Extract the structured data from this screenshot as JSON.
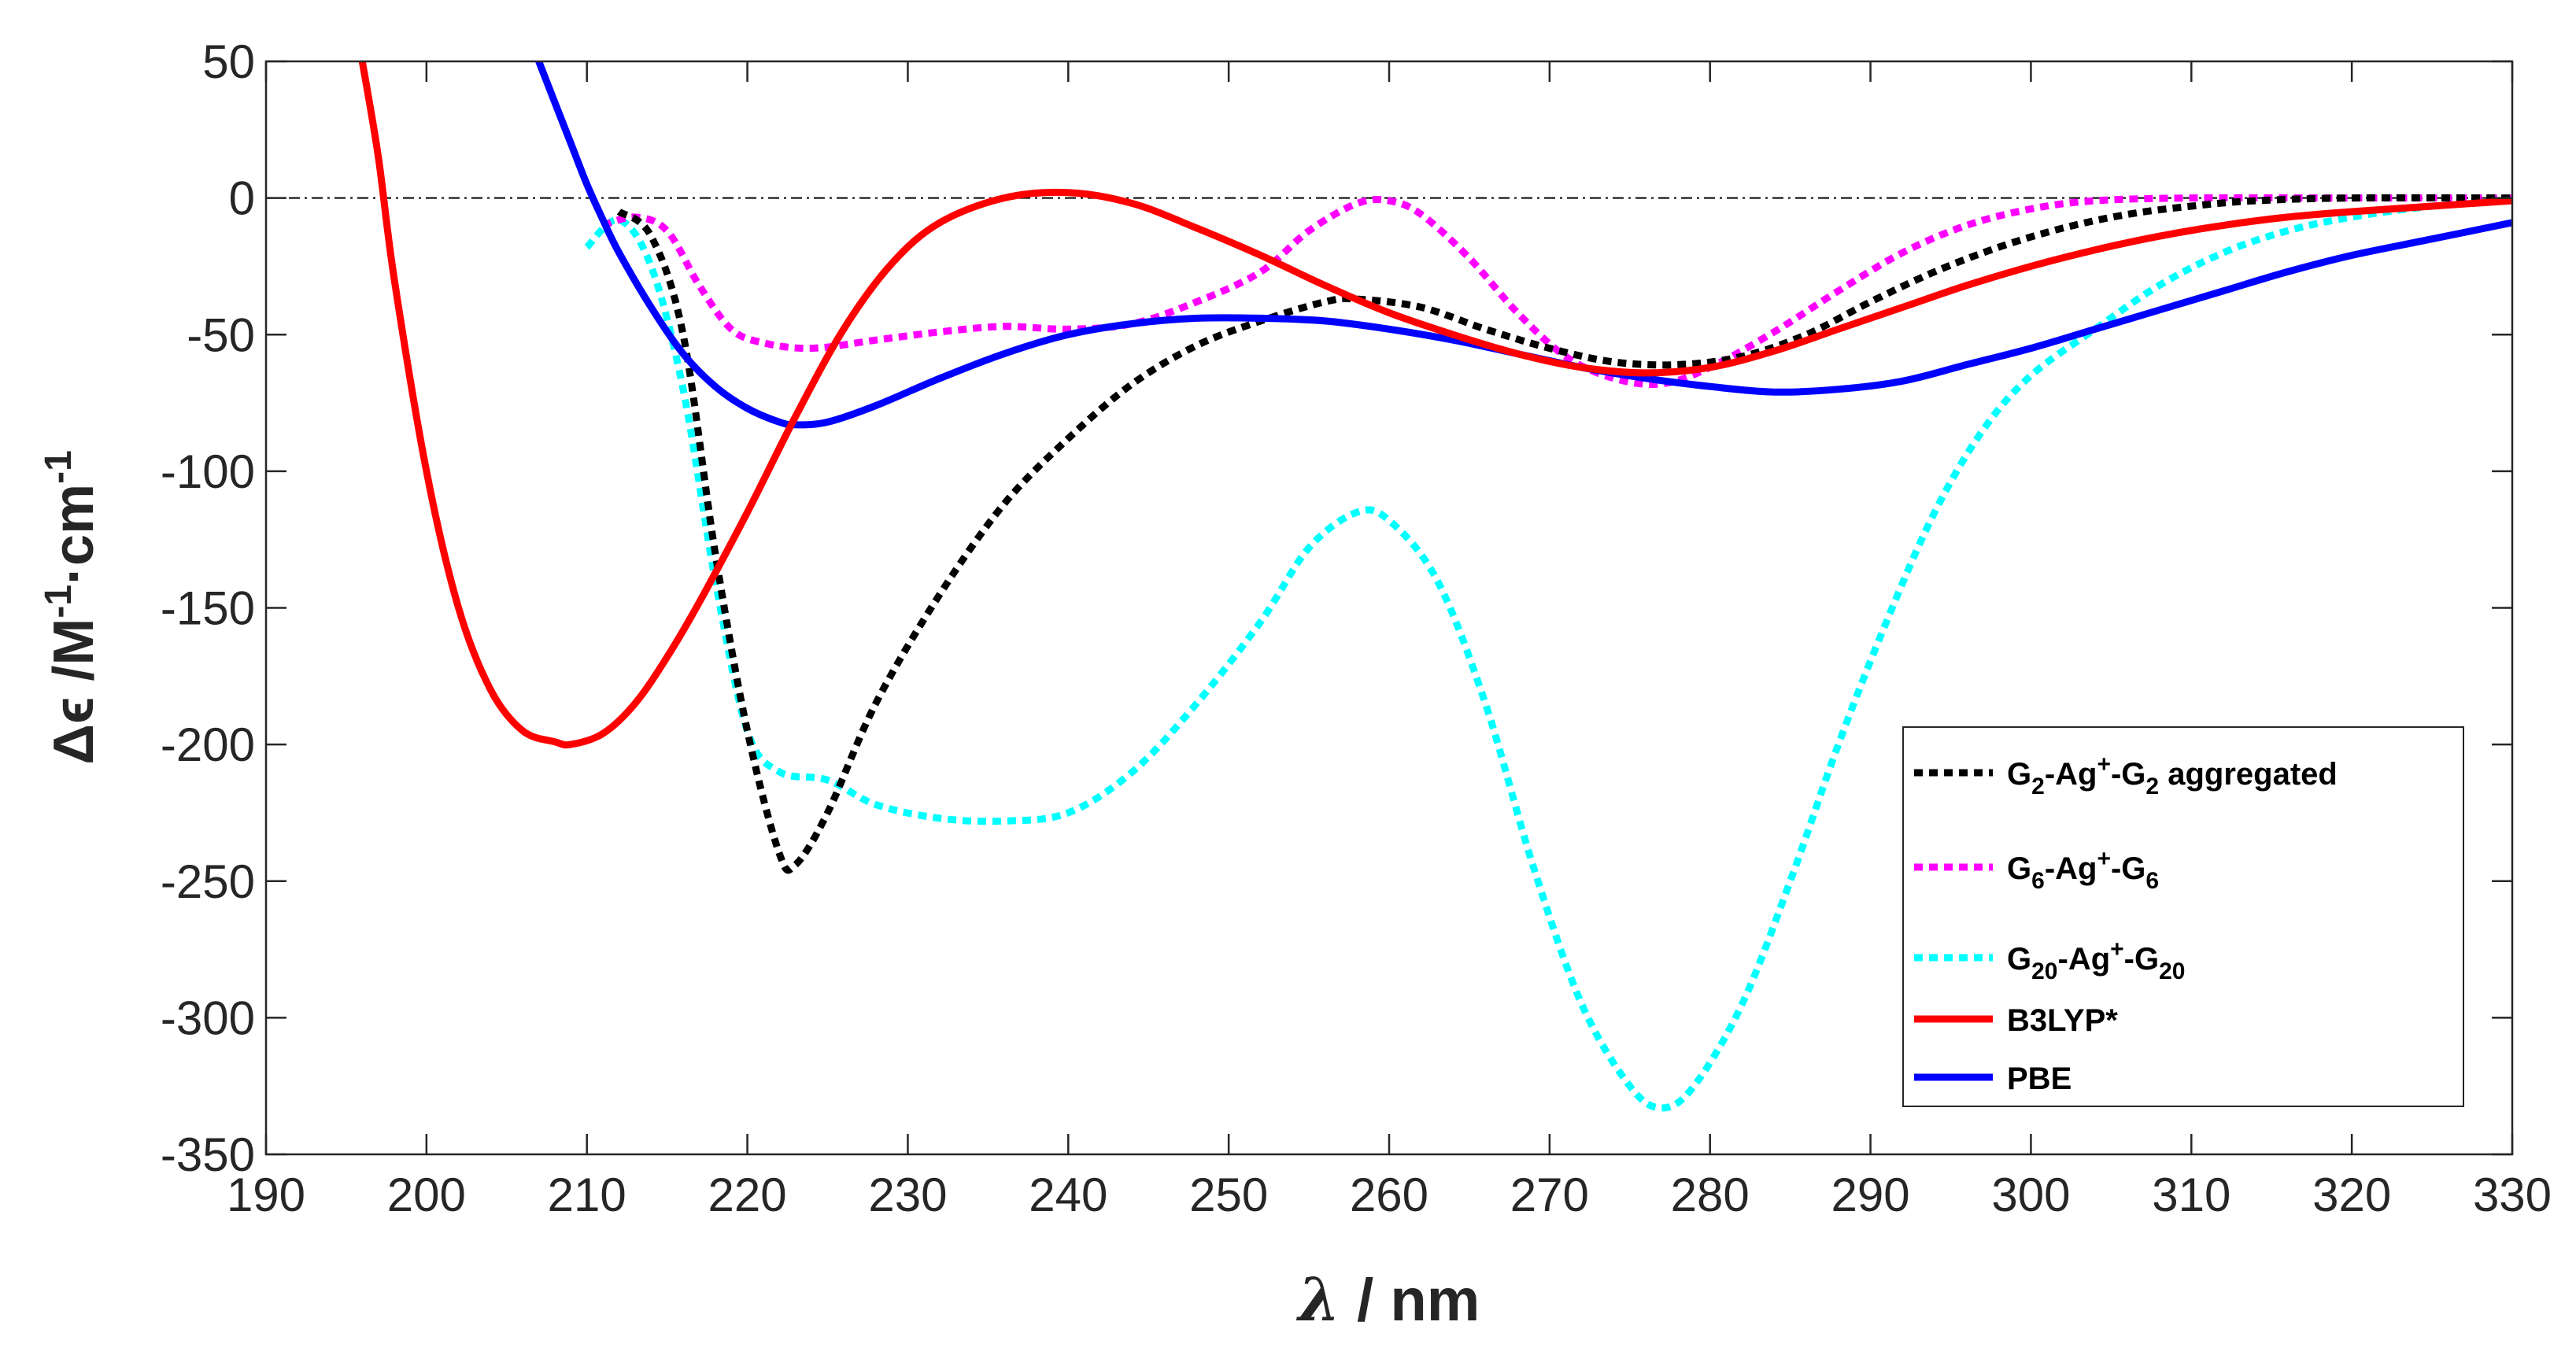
{
  "chart_data": {
    "type": "line",
    "title": "",
    "xlabel": {
      "symbol": "λ",
      "rest": " / nm"
    },
    "ylabel": {
      "a": "Δϵ /M",
      "b": "-1",
      "c": "·cm",
      "d": "-1"
    },
    "xlim": [
      190,
      330
    ],
    "ylim": [
      -350,
      50
    ],
    "xticks": [
      190,
      200,
      210,
      220,
      230,
      240,
      250,
      260,
      270,
      280,
      290,
      300,
      310,
      320,
      330
    ],
    "yticks": [
      50,
      0,
      -50,
      -100,
      -150,
      -200,
      -250,
      -300,
      -350
    ],
    "zero_line": true,
    "grid": false,
    "legend_position": "bottom-right",
    "series": [
      {
        "name": "G2-Ag+-G2 aggregated",
        "legend": [
          [
            "G",
            "n"
          ],
          [
            "2",
            "sub"
          ],
          [
            "-Ag",
            "n"
          ],
          [
            "+",
            "sup"
          ],
          [
            "-G",
            "n"
          ],
          [
            "2",
            "sub"
          ],
          [
            " aggregated",
            "n"
          ]
        ],
        "color": "#000000",
        "dashed": true,
        "points": [
          [
            212,
            -5
          ],
          [
            214,
            -14
          ],
          [
            216,
            -50
          ],
          [
            218,
            -130
          ],
          [
            220,
            -195
          ],
          [
            222,
            -240
          ],
          [
            223,
            -244
          ],
          [
            225,
            -225
          ],
          [
            228,
            -185
          ],
          [
            232,
            -145
          ],
          [
            236,
            -112
          ],
          [
            240,
            -88
          ],
          [
            244,
            -68
          ],
          [
            248,
            -54
          ],
          [
            252,
            -45
          ],
          [
            256,
            -38
          ],
          [
            258,
            -37
          ],
          [
            262,
            -40
          ],
          [
            266,
            -48
          ],
          [
            270,
            -55
          ],
          [
            274,
            -60
          ],
          [
            278,
            -61
          ],
          [
            282,
            -58
          ],
          [
            286,
            -50
          ],
          [
            290,
            -38
          ],
          [
            294,
            -27
          ],
          [
            298,
            -18
          ],
          [
            302,
            -11
          ],
          [
            306,
            -6
          ],
          [
            310,
            -3
          ],
          [
            314,
            -1
          ],
          [
            320,
            0
          ],
          [
            330,
            0
          ]
        ]
      },
      {
        "name": "G6-Ag+-G6",
        "legend": [
          [
            "G",
            "n"
          ],
          [
            "6",
            "sub"
          ],
          [
            "-Ag",
            "n"
          ],
          [
            "+",
            "sup"
          ],
          [
            "-G",
            "n"
          ],
          [
            "6",
            "sub"
          ]
        ],
        "color": "#ff00ff",
        "dashed": true,
        "points": [
          [
            211,
            -10
          ],
          [
            213,
            -7
          ],
          [
            215,
            -12
          ],
          [
            217,
            -32
          ],
          [
            219,
            -48
          ],
          [
            221,
            -53
          ],
          [
            224,
            -55
          ],
          [
            228,
            -52
          ],
          [
            232,
            -49
          ],
          [
            236,
            -47
          ],
          [
            240,
            -48
          ],
          [
            244,
            -46
          ],
          [
            248,
            -38
          ],
          [
            252,
            -27
          ],
          [
            255,
            -12
          ],
          [
            258,
            -2
          ],
          [
            260,
            -1
          ],
          [
            262,
            -6
          ],
          [
            265,
            -22
          ],
          [
            268,
            -42
          ],
          [
            271,
            -58
          ],
          [
            274,
            -66
          ],
          [
            277,
            -68
          ],
          [
            280,
            -62
          ],
          [
            284,
            -49
          ],
          [
            288,
            -34
          ],
          [
            292,
            -20
          ],
          [
            296,
            -10
          ],
          [
            300,
            -4
          ],
          [
            304,
            -1
          ],
          [
            310,
            0
          ],
          [
            320,
            0
          ],
          [
            330,
            0
          ]
        ]
      },
      {
        "name": "G20-Ag+-G20",
        "legend": [
          [
            "G",
            "n"
          ],
          [
            "20",
            "sub"
          ],
          [
            "-Ag",
            "n"
          ],
          [
            "+",
            "sup"
          ],
          [
            "-G",
            "n"
          ],
          [
            "20",
            "sub"
          ]
        ],
        "color": "#00ffff",
        "dashed": true,
        "points": [
          [
            210,
            -18
          ],
          [
            212,
            -8
          ],
          [
            214,
            -25
          ],
          [
            216,
            -70
          ],
          [
            218,
            -140
          ],
          [
            220,
            -195
          ],
          [
            222,
            -210
          ],
          [
            225,
            -213
          ],
          [
            228,
            -222
          ],
          [
            232,
            -227
          ],
          [
            236,
            -228
          ],
          [
            240,
            -225
          ],
          [
            244,
            -210
          ],
          [
            248,
            -185
          ],
          [
            252,
            -155
          ],
          [
            255,
            -128
          ],
          [
            258,
            -115
          ],
          [
            260,
            -118
          ],
          [
            263,
            -140
          ],
          [
            266,
            -185
          ],
          [
            269,
            -245
          ],
          [
            272,
            -295
          ],
          [
            275,
            -325
          ],
          [
            277,
            -333
          ],
          [
            279,
            -325
          ],
          [
            282,
            -295
          ],
          [
            285,
            -250
          ],
          [
            288,
            -200
          ],
          [
            291,
            -155
          ],
          [
            294,
            -115
          ],
          [
            297,
            -85
          ],
          [
            300,
            -65
          ],
          [
            304,
            -48
          ],
          [
            308,
            -32
          ],
          [
            312,
            -20
          ],
          [
            316,
            -12
          ],
          [
            320,
            -7
          ],
          [
            325,
            -3
          ],
          [
            330,
            -1
          ]
        ]
      },
      {
        "name": "B3LYP*",
        "legend": [
          [
            "B3LYP*",
            "n"
          ]
        ],
        "color": "#ff0000",
        "dashed": false,
        "points": [
          [
            196,
            50
          ],
          [
            197,
            15
          ],
          [
            198,
            -30
          ],
          [
            200,
            -100
          ],
          [
            202,
            -150
          ],
          [
            204,
            -180
          ],
          [
            206,
            -195
          ],
          [
            208,
            -199
          ],
          [
            209,
            -200
          ],
          [
            211,
            -196
          ],
          [
            213,
            -185
          ],
          [
            215,
            -168
          ],
          [
            217,
            -148
          ],
          [
            220,
            -115
          ],
          [
            223,
            -80
          ],
          [
            226,
            -48
          ],
          [
            229,
            -24
          ],
          [
            232,
            -9
          ],
          [
            236,
            0
          ],
          [
            240,
            2
          ],
          [
            244,
            -2
          ],
          [
            248,
            -11
          ],
          [
            252,
            -21
          ],
          [
            256,
            -32
          ],
          [
            260,
            -42
          ],
          [
            264,
            -50
          ],
          [
            268,
            -57
          ],
          [
            272,
            -62
          ],
          [
            276,
            -64
          ],
          [
            280,
            -62
          ],
          [
            284,
            -56
          ],
          [
            288,
            -48
          ],
          [
            292,
            -40
          ],
          [
            296,
            -32
          ],
          [
            300,
            -25
          ],
          [
            304,
            -19
          ],
          [
            308,
            -14
          ],
          [
            312,
            -10
          ],
          [
            316,
            -7
          ],
          [
            320,
            -5
          ],
          [
            325,
            -3
          ],
          [
            330,
            -1
          ]
        ]
      },
      {
        "name": "PBE",
        "legend": [
          [
            "PBE",
            "n"
          ]
        ],
        "color": "#0000ff",
        "dashed": false,
        "points": [
          [
            207,
            50
          ],
          [
            208,
            35
          ],
          [
            209,
            20
          ],
          [
            210,
            5
          ],
          [
            211,
            -8
          ],
          [
            212,
            -20
          ],
          [
            214,
            -40
          ],
          [
            216,
            -57
          ],
          [
            218,
            -69
          ],
          [
            220,
            -77
          ],
          [
            222,
            -82
          ],
          [
            223,
            -83
          ],
          [
            225,
            -82
          ],
          [
            228,
            -76
          ],
          [
            232,
            -66
          ],
          [
            236,
            -57
          ],
          [
            240,
            -50
          ],
          [
            244,
            -46
          ],
          [
            248,
            -44
          ],
          [
            252,
            -44
          ],
          [
            256,
            -45
          ],
          [
            260,
            -48
          ],
          [
            264,
            -52
          ],
          [
            268,
            -57
          ],
          [
            272,
            -62
          ],
          [
            276,
            -66
          ],
          [
            280,
            -69
          ],
          [
            284,
            -71
          ],
          [
            288,
            -70
          ],
          [
            292,
            -67
          ],
          [
            296,
            -61
          ],
          [
            300,
            -55
          ],
          [
            304,
            -48
          ],
          [
            308,
            -41
          ],
          [
            312,
            -34
          ],
          [
            316,
            -27
          ],
          [
            320,
            -21
          ],
          [
            325,
            -15
          ],
          [
            330,
            -9
          ]
        ]
      }
    ]
  }
}
